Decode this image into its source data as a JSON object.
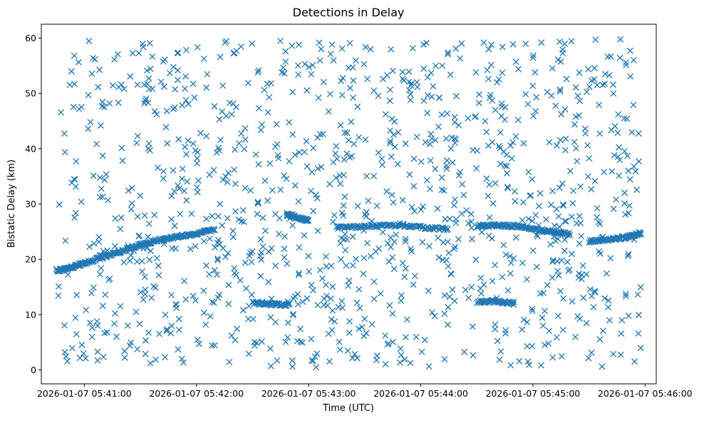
{
  "chart_data": {
    "type": "scatter",
    "title": "Detections in Delay",
    "xlabel": "Time (UTC)",
    "ylabel": "Bistatic Delay (km)",
    "x_ticks": [
      "2026-01-07 05:41:00",
      "2026-01-07 05:42:00",
      "2026-01-07 05:43:00",
      "2026-01-07 05:44:00",
      "2026-01-07 05:45:00",
      "2026-01-07 05:46:00"
    ],
    "y_ticks": [
      "0",
      "10",
      "20",
      "30",
      "40",
      "50",
      "60"
    ],
    "xlim": [
      "2026-01-07 05:40:37",
      "2026-01-07 05:46:06"
    ],
    "ylim": [
      -2.5,
      62.5
    ],
    "marker": "x",
    "marker_color": "#1f77b4",
    "grid": false,
    "legend": "none",
    "data_extent": {
      "x_start": "2026-01-07 05:40:45",
      "x_end": "2026-01-07 05:45:58",
      "y_min": 0.5,
      "y_max": 59.9
    },
    "tracks": [
      {
        "x": [
          "2026-01-07 05:40:45",
          "2026-01-07 05:40:52",
          "2026-01-07 05:41:00",
          "2026-01-07 05:41:10",
          "2026-01-07 05:41:20",
          "2026-01-07 05:41:30",
          "2026-01-07 05:41:40",
          "2026-01-07 05:41:50",
          "2026-01-07 05:42:00",
          "2026-01-07 05:42:10"
        ],
        "y": [
          18.0,
          18.4,
          19.3,
          20.4,
          21.5,
          22.6,
          23.5,
          24.1,
          24.6,
          25.5
        ]
      },
      {
        "x": [
          "2026-01-07 05:42:30",
          "2026-01-07 05:42:40",
          "2026-01-07 05:42:50"
        ],
        "y": [
          12.1,
          11.9,
          11.8
        ]
      },
      {
        "x": [
          "2026-01-07 05:42:48",
          "2026-01-07 05:42:55",
          "2026-01-07 05:43:00"
        ],
        "y": [
          28.1,
          27.4,
          27.0
        ]
      },
      {
        "x": [
          "2026-01-07 05:43:15",
          "2026-01-07 05:43:30",
          "2026-01-07 05:43:45",
          "2026-01-07 05:44:00",
          "2026-01-07 05:44:15"
        ],
        "y": [
          25.7,
          26.0,
          26.2,
          25.8,
          25.4
        ]
      },
      {
        "x": [
          "2026-01-07 05:44:30",
          "2026-01-07 05:44:40",
          "2026-01-07 05:44:50",
          "2026-01-07 05:45:00",
          "2026-01-07 05:45:10",
          "2026-01-07 05:45:20"
        ],
        "y": [
          26.0,
          26.2,
          26.0,
          25.5,
          25.0,
          24.5
        ]
      },
      {
        "x": [
          "2026-01-07 05:44:30",
          "2026-01-07 05:44:40",
          "2026-01-07 05:44:50"
        ],
        "y": [
          12.3,
          12.4,
          12.1
        ]
      },
      {
        "x": [
          "2026-01-07 05:45:30",
          "2026-01-07 05:45:40",
          "2026-01-07 05:45:50",
          "2026-01-07 05:45:58"
        ],
        "y": [
          23.3,
          23.5,
          24.0,
          24.8
        ]
      }
    ],
    "clutter_count": 1150,
    "track_points_per_segment": 24
  }
}
